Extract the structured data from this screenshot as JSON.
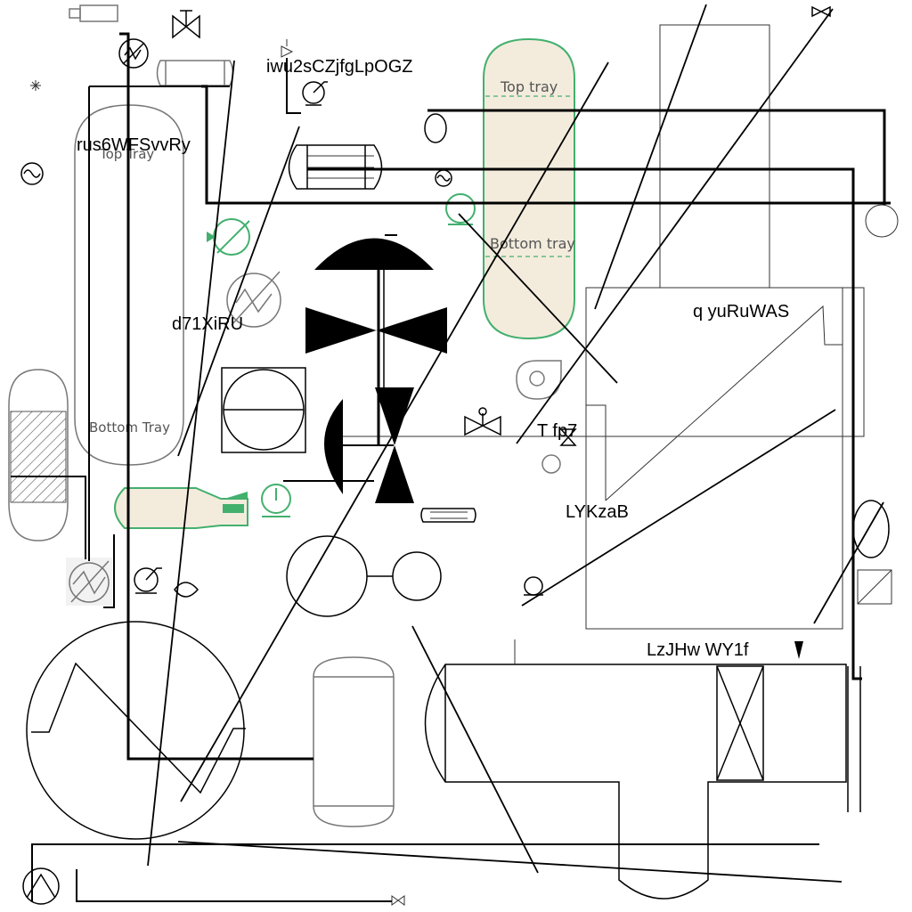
{
  "diagram": {
    "labels": {
      "tag_top_center": "iwu2sCZjfgLpOGZ",
      "tag_left_column": "rus6WFSvvRy",
      "tag_exchanger": "d71XiRU",
      "tag_right_box": "q yuRuWAS",
      "tag_valve": "T fp7",
      "tag_box_lower": "LYKzaB",
      "tag_bottom_right": "LzJHw WY1f"
    },
    "column_left": {
      "top_label": "Top Tray",
      "bottom_label": "Bottom Tray"
    },
    "column_green": {
      "top_label": "Top tray",
      "bottom_label": "Bottom tray"
    },
    "colors": {
      "line": "#000000",
      "equipment_green": "#43b06e",
      "vessel_fill": "#f3ecdd",
      "vessel_gray": "#777777"
    }
  }
}
